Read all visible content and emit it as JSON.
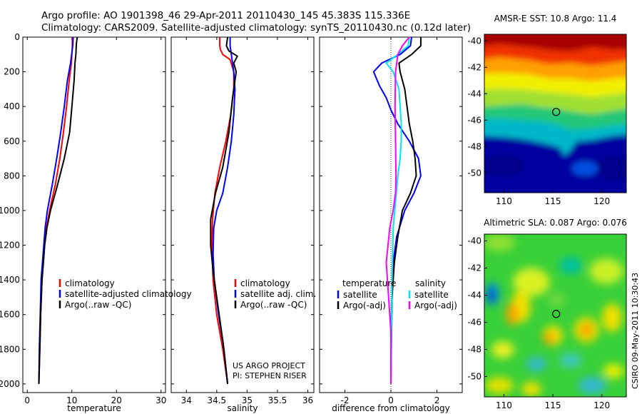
{
  "header": {
    "line1": "Argo profile: AO 1901398_46 29-Apr-2011 20110430_145 45.383S 115.336E",
    "line2": "Climatology: CARS2009. Satellite-adjusted climatology: synTS_20110430.nc (0.12d later)"
  },
  "credit": {
    "project": "US ARGO PROJECT",
    "pi": "PI: STEPHEN RISER"
  },
  "footer": "CSIRO 09-May-2011 10:30:43",
  "chart_data": [
    {
      "type": "line",
      "xlabel": "temperature",
      "xlim": [
        -1,
        31
      ],
      "xticks": [
        0,
        10,
        20,
        30
      ],
      "ylim": [
        2050,
        0
      ],
      "yticks": [
        0,
        200,
        400,
        600,
        800,
        1000,
        1200,
        1400,
        1600,
        1800,
        2000
      ],
      "legend": [
        "climatology",
        "satellite-adjusted climatology",
        "Argo(..raw -QC)"
      ],
      "series": [
        {
          "name": "climatology",
          "color": "#ff0000",
          "x": [
            10.1,
            10.1,
            9.9,
            9.4,
            8.8,
            8.1,
            7.3,
            6.3,
            5.0,
            4.3,
            3.9,
            3.6,
            3.3,
            3.0,
            2.8,
            2.6
          ],
          "y": [
            0,
            50,
            150,
            250,
            400,
            550,
            700,
            850,
            1000,
            1100,
            1200,
            1300,
            1400,
            1600,
            1800,
            2000
          ]
        },
        {
          "name": "satellite-adjusted climatology",
          "color": "#0000ff",
          "x": [
            10.3,
            10.2,
            9.7,
            9.0,
            8.3,
            7.5,
            6.6,
            5.6,
            4.5,
            4.0,
            3.7,
            3.4,
            3.1,
            2.9,
            2.7,
            2.6
          ],
          "y": [
            0,
            50,
            150,
            250,
            400,
            550,
            700,
            850,
            1000,
            1100,
            1200,
            1300,
            1400,
            1600,
            1800,
            2000
          ]
        },
        {
          "name": "Argo(..raw -QC)",
          "color": "#000000",
          "x": [
            11.2,
            11.0,
            10.9,
            10.7,
            10.5,
            10.0,
            9.5,
            8.3,
            6.8,
            5.2,
            4.4,
            3.9,
            3.6,
            3.3,
            3.0,
            2.8,
            2.6
          ],
          "y": [
            0,
            40,
            100,
            150,
            250,
            400,
            550,
            700,
            850,
            1000,
            1100,
            1200,
            1300,
            1400,
            1600,
            1800,
            2000
          ]
        }
      ]
    },
    {
      "type": "line",
      "xlabel": "salinity",
      "xlim": [
        33.75,
        36.1
      ],
      "xticks": [
        34,
        34.5,
        35,
        35.5,
        36
      ],
      "xticklabels": [
        "34",
        "34.5",
        "35",
        "35.5",
        "36"
      ],
      "ylim": [
        2050,
        0
      ],
      "legend": [
        "climatology",
        "satellite adj. clim.",
        "Argo(..raw -QC)"
      ],
      "series": [
        {
          "name": "climatology",
          "color": "#ff0000",
          "x": [
            34.55,
            34.55,
            34.56,
            34.6,
            34.72,
            34.78,
            34.78,
            34.73,
            34.65,
            34.55,
            34.47,
            34.43,
            34.42,
            34.44,
            34.5,
            34.6,
            34.68
          ],
          "y": [
            0,
            50,
            70,
            100,
            130,
            200,
            300,
            450,
            600,
            750,
            900,
            1050,
            1200,
            1400,
            1600,
            1800,
            2000
          ]
        },
        {
          "name": "satellite adj. clim.",
          "color": "#0000ff",
          "x": [
            34.72,
            34.72,
            34.74,
            34.78,
            34.8,
            34.78,
            34.74,
            34.68,
            34.6,
            34.5,
            34.45,
            34.44,
            34.46,
            34.53,
            34.62,
            34.68
          ],
          "y": [
            0,
            50,
            100,
            200,
            300,
            450,
            600,
            750,
            900,
            1000,
            1100,
            1250,
            1400,
            1600,
            1800,
            2000
          ]
        },
        {
          "name": "Argo(..raw -QC)",
          "color": "#000000",
          "x": [
            34.68,
            34.66,
            34.7,
            34.84,
            34.78,
            34.82,
            34.76,
            34.7,
            34.6,
            34.48,
            34.4,
            34.4,
            34.44,
            34.5,
            34.6,
            34.68
          ],
          "y": [
            0,
            50,
            80,
            110,
            150,
            200,
            350,
            550,
            750,
            900,
            1050,
            1200,
            1350,
            1500,
            1750,
            2000
          ]
        }
      ]
    },
    {
      "type": "line",
      "xlabel": "difference from climatology",
      "xlim": [
        -3.1,
        3.1
      ],
      "xticks": [
        -2,
        0,
        2
      ],
      "ylim": [
        2050,
        0
      ],
      "legend": {
        "temperature": [
          "satellite",
          "Argo(-adj)"
        ],
        "salinity": [
          "satellite",
          "Argo(-adj)"
        ]
      },
      "series": [
        {
          "name": "satellite",
          "group": "temperature",
          "color": "#0000ff",
          "x": [
            0.9,
            0.85,
            0.4,
            -0.4,
            -0.75,
            -0.5,
            -0.2,
            0.0,
            0.3,
            0.8,
            1.2,
            1.3,
            1.0,
            0.6,
            0.25,
            0.1,
            0.05,
            0.0,
            0.0
          ],
          "y": [
            0,
            50,
            100,
            150,
            200,
            280,
            350,
            420,
            500,
            600,
            700,
            800,
            900,
            1000,
            1150,
            1300,
            1500,
            1700,
            2000
          ]
        },
        {
          "name": "Argo(-adj)",
          "group": "temperature",
          "color": "#000000",
          "x": [
            1.3,
            1.3,
            0.9,
            0.35,
            0.4,
            0.6,
            0.7,
            0.8,
            0.95,
            1.05,
            1.1,
            0.85,
            0.5,
            0.3,
            0.15,
            0.05,
            0.0
          ],
          "y": [
            0,
            50,
            100,
            150,
            200,
            300,
            400,
            500,
            600,
            700,
            800,
            900,
            1000,
            1150,
            1300,
            1500,
            2000
          ]
        },
        {
          "name": "satellite",
          "group": "salinity",
          "color": "#00e5ee",
          "x": [
            0.8,
            0.75,
            0.3,
            -0.2,
            0.1,
            0.35,
            0.4,
            0.45,
            0.45,
            0.4,
            0.3,
            0.2,
            0.1,
            0.05,
            0.0
          ],
          "y": [
            0,
            50,
            100,
            150,
            200,
            300,
            400,
            500,
            600,
            700,
            800,
            950,
            1100,
            1400,
            2000
          ]
        },
        {
          "name": "Argo(-adj)",
          "group": "salinity",
          "color": "#ff00ff",
          "x": [
            0.8,
            0.5,
            0.3,
            0.2,
            0.18,
            0.2,
            0.22,
            0.2,
            0.1,
            -0.05,
            -0.2,
            -0.1,
            0.0,
            0.0
          ],
          "y": [
            0,
            50,
            100,
            200,
            400,
            600,
            800,
            900,
            1000,
            1100,
            1300,
            1500,
            1700,
            2000
          ]
        }
      ]
    },
    {
      "type": "heatmap",
      "title": "AMSR-E SST: 10.8 Argo: 11.4",
      "xlim": [
        108,
        122.5
      ],
      "ylim": [
        -51.5,
        -39.5
      ],
      "xticks": [
        110,
        115,
        120
      ],
      "yticks": [
        -40,
        -42,
        -44,
        -46,
        -48,
        -50
      ],
      "marker": {
        "x": 115.336,
        "y": -45.383
      }
    },
    {
      "type": "heatmap",
      "title": "Altimetric SLA: 0.087 Argo: 0.076",
      "xlim": [
        108,
        122.5
      ],
      "ylim": [
        -51.5,
        -39.5
      ],
      "xticks": [
        110,
        115,
        120
      ],
      "yticks": [
        -40,
        -42,
        -44,
        -46,
        -48,
        -50
      ],
      "marker": {
        "x": 115.336,
        "y": -45.383
      }
    }
  ]
}
